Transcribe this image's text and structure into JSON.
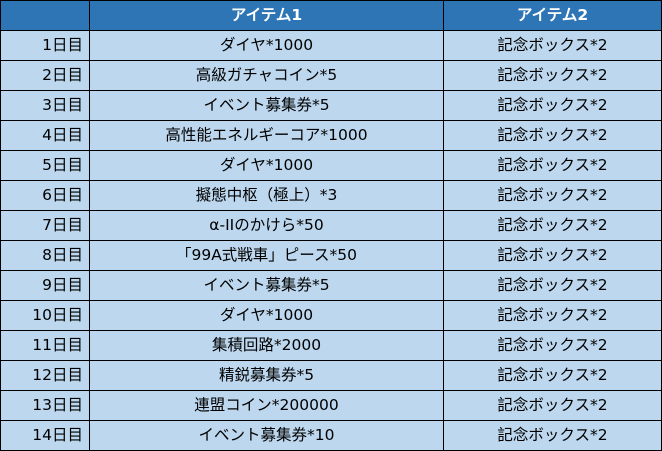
{
  "table": {
    "headers": [
      "",
      "アイテム1",
      "アイテム2"
    ],
    "rows": [
      {
        "day": "1日目",
        "item1": "ダイヤ*1000",
        "item2": "記念ボックス*2"
      },
      {
        "day": "2日目",
        "item1": "高級ガチャコイン*5",
        "item2": "記念ボックス*2"
      },
      {
        "day": "3日目",
        "item1": "イベント募集券*5",
        "item2": "記念ボックス*2"
      },
      {
        "day": "4日目",
        "item1": "高性能エネルギーコア*1000",
        "item2": "記念ボックス*2"
      },
      {
        "day": "5日目",
        "item1": "ダイヤ*1000",
        "item2": "記念ボックス*2"
      },
      {
        "day": "6日目",
        "item1": "擬態中枢（極上）*3",
        "item2": "記念ボックス*2"
      },
      {
        "day": "7日目",
        "item1": "α-IIのかけら*50",
        "item2": "記念ボックス*2"
      },
      {
        "day": "8日目",
        "item1": "「99A式戦車」ピース*50",
        "item2": "記念ボックス*2"
      },
      {
        "day": "9日目",
        "item1": "イベント募集券*5",
        "item2": "記念ボックス*2"
      },
      {
        "day": "10日目",
        "item1": "ダイヤ*1000",
        "item2": "記念ボックス*2"
      },
      {
        "day": "11日目",
        "item1": "集積回路*2000",
        "item2": "記念ボックス*2"
      },
      {
        "day": "12日目",
        "item1": "精鋭募集券*5",
        "item2": "記念ボックス*2"
      },
      {
        "day": "13日目",
        "item1": "連盟コイン*200000",
        "item2": "記念ボックス*2"
      },
      {
        "day": "14日目",
        "item1": "イベント募集券*10",
        "item2": "記念ボックス*2"
      }
    ]
  },
  "colors": {
    "header_bg": "#2e75b6",
    "header_text": "#ffffff",
    "cell_bg": "#bdd7ee",
    "border": "#000000"
  }
}
